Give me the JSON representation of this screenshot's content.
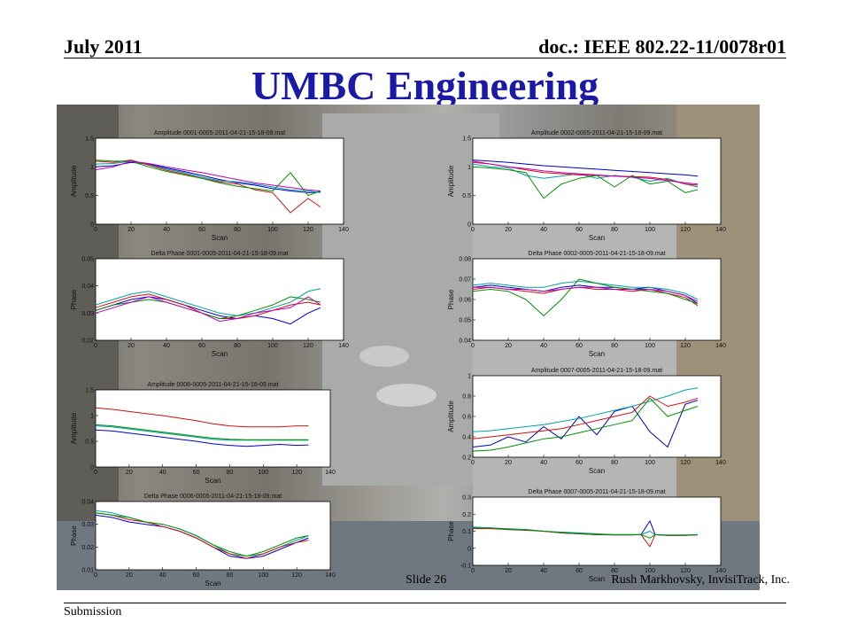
{
  "header": {
    "left": "July 2011",
    "right": "doc.: IEEE 802.22-11/0078r01"
  },
  "title": "UMBC Engineering",
  "footer": {
    "left": "Submission",
    "slide": "Slide 26",
    "author": "Rush Markhovsky, InvisiTrack, Inc."
  },
  "colors": {
    "title": "#1a1aa6",
    "series": [
      "#0000cc",
      "#00a0a0",
      "#d01010",
      "#009000",
      "#c000c0"
    ]
  },
  "chart_data": [
    {
      "type": "line",
      "title": "Amplitude 0001-0005-2011-04-21-15-18-09.mat",
      "xlabel": "Scan",
      "ylabel": "Amplitude",
      "xlim": [
        0,
        140
      ],
      "ylim": [
        0,
        1.5
      ],
      "xticks": [
        0,
        20,
        40,
        60,
        80,
        100,
        120,
        140
      ],
      "yticks": [
        0,
        0.5,
        1,
        1.5
      ],
      "x": [
        0,
        10,
        20,
        30,
        40,
        50,
        60,
        70,
        80,
        90,
        100,
        110,
        120,
        127
      ],
      "series": [
        {
          "values": [
            1.0,
            1.02,
            1.08,
            1.05,
            0.98,
            0.92,
            0.85,
            0.78,
            0.72,
            0.68,
            0.62,
            0.58,
            0.55,
            0.56
          ]
        },
        {
          "values": [
            1.05,
            1.06,
            1.1,
            1.04,
            0.96,
            0.9,
            0.82,
            0.76,
            0.74,
            0.7,
            0.65,
            0.6,
            0.58,
            0.55
          ]
        },
        {
          "values": [
            1.1,
            1.08,
            1.12,
            1.03,
            0.94,
            0.88,
            0.8,
            0.74,
            0.7,
            0.6,
            0.55,
            0.2,
            0.45,
            0.3
          ]
        },
        {
          "values": [
            1.12,
            1.1,
            1.1,
            1.0,
            0.92,
            0.86,
            0.8,
            0.72,
            0.66,
            0.62,
            0.58,
            0.9,
            0.5,
            0.58
          ]
        },
        {
          "values": [
            0.95,
            1.0,
            1.1,
            1.06,
            1.0,
            0.95,
            0.9,
            0.84,
            0.78,
            0.72,
            0.68,
            0.64,
            0.6,
            0.58
          ]
        }
      ]
    },
    {
      "type": "line",
      "title": "Amplitude 0002-0005-2011-04-21-15-18-09.mat",
      "xlabel": "Scan",
      "ylabel": "Amplitude",
      "xlim": [
        0,
        140
      ],
      "ylim": [
        0,
        1.5
      ],
      "xticks": [
        0,
        20,
        40,
        60,
        80,
        100,
        120,
        140
      ],
      "yticks": [
        0,
        0.5,
        1,
        1.5
      ],
      "x": [
        0,
        10,
        20,
        30,
        40,
        50,
        60,
        70,
        80,
        90,
        100,
        110,
        120,
        127
      ],
      "series": [
        {
          "values": [
            1.12,
            1.1,
            1.08,
            1.05,
            1.02,
            1.0,
            0.98,
            0.96,
            0.94,
            0.92,
            0.9,
            0.88,
            0.86,
            0.84
          ]
        },
        {
          "values": [
            1.05,
            1.0,
            0.98,
            0.85,
            0.8,
            0.84,
            0.88,
            0.8,
            0.85,
            0.82,
            0.75,
            0.8,
            0.7,
            0.65
          ]
        },
        {
          "values": [
            1.1,
            1.05,
            1.0,
            0.95,
            0.9,
            0.88,
            0.86,
            0.85,
            0.84,
            0.83,
            0.82,
            0.78,
            0.7,
            0.68
          ]
        },
        {
          "values": [
            1.0,
            0.98,
            0.95,
            0.9,
            0.45,
            0.7,
            0.8,
            0.85,
            0.65,
            0.85,
            0.7,
            0.75,
            0.55,
            0.6
          ]
        },
        {
          "values": [
            1.08,
            1.05,
            1.0,
            0.97,
            0.93,
            0.9,
            0.88,
            0.86,
            0.84,
            0.82,
            0.8,
            0.76,
            0.72,
            0.7
          ]
        }
      ]
    },
    {
      "type": "line",
      "title": "Delta Phase 0001-0005-2011-04-21-15-18-09.mat",
      "xlabel": "Scan",
      "ylabel": "Phase",
      "xlim": [
        0,
        140
      ],
      "ylim": [
        0.02,
        0.05
      ],
      "xticks": [
        0,
        20,
        40,
        60,
        80,
        100,
        120,
        140
      ],
      "yticks": [
        0.02,
        0.03,
        0.04,
        0.05
      ],
      "x": [
        0,
        10,
        20,
        30,
        40,
        50,
        60,
        70,
        80,
        90,
        100,
        110,
        120,
        127
      ],
      "series": [
        {
          "values": [
            0.031,
            0.033,
            0.035,
            0.036,
            0.035,
            0.033,
            0.031,
            0.029,
            0.028,
            0.029,
            0.028,
            0.026,
            0.03,
            0.032
          ]
        },
        {
          "values": [
            0.033,
            0.035,
            0.037,
            0.038,
            0.036,
            0.034,
            0.032,
            0.03,
            0.029,
            0.03,
            0.032,
            0.034,
            0.038,
            0.039
          ]
        },
        {
          "values": [
            0.032,
            0.034,
            0.036,
            0.037,
            0.035,
            0.033,
            0.03,
            0.028,
            0.028,
            0.029,
            0.031,
            0.033,
            0.034,
            0.033
          ]
        },
        {
          "values": [
            0.031,
            0.033,
            0.034,
            0.035,
            0.034,
            0.032,
            0.03,
            0.028,
            0.029,
            0.031,
            0.033,
            0.036,
            0.035,
            0.034
          ]
        },
        {
          "values": [
            0.03,
            0.032,
            0.034,
            0.036,
            0.034,
            0.032,
            0.03,
            0.027,
            0.028,
            0.03,
            0.031,
            0.032,
            0.036,
            0.033
          ]
        }
      ]
    },
    {
      "type": "line",
      "title": "Delta Phase 0002-0005-2011-04-21-15-18-09.mat",
      "xlabel": "Scan",
      "ylabel": "Phase",
      "xlim": [
        0,
        140
      ],
      "ylim": [
        0.04,
        0.08
      ],
      "xticks": [
        0,
        20,
        40,
        60,
        80,
        100,
        120,
        140
      ],
      "yticks": [
        0.04,
        0.05,
        0.06,
        0.07,
        0.08
      ],
      "x": [
        0,
        10,
        20,
        30,
        40,
        50,
        60,
        70,
        80,
        90,
        100,
        110,
        120,
        127
      ],
      "series": [
        {
          "values": [
            0.066,
            0.067,
            0.066,
            0.065,
            0.064,
            0.066,
            0.067,
            0.066,
            0.066,
            0.065,
            0.066,
            0.064,
            0.062,
            0.058
          ]
        },
        {
          "values": [
            0.067,
            0.068,
            0.067,
            0.066,
            0.066,
            0.068,
            0.069,
            0.068,
            0.067,
            0.066,
            0.066,
            0.065,
            0.063,
            0.06
          ]
        },
        {
          "values": [
            0.065,
            0.066,
            0.065,
            0.064,
            0.063,
            0.065,
            0.066,
            0.065,
            0.065,
            0.064,
            0.065,
            0.063,
            0.061,
            0.057
          ]
        },
        {
          "values": [
            0.064,
            0.065,
            0.064,
            0.06,
            0.052,
            0.06,
            0.07,
            0.068,
            0.066,
            0.065,
            0.064,
            0.063,
            0.06,
            0.058
          ]
        },
        {
          "values": [
            0.066,
            0.066,
            0.065,
            0.065,
            0.064,
            0.065,
            0.066,
            0.066,
            0.065,
            0.065,
            0.065,
            0.064,
            0.062,
            0.059
          ]
        }
      ]
    },
    {
      "type": "line",
      "title": "Amplitude 0006-0005-2011-04-21-15-18-09.mat",
      "xlabel": "Scan",
      "ylabel": "Amplitude",
      "xlim": [
        0,
        140
      ],
      "ylim": [
        0,
        1.5
      ],
      "xticks": [
        0,
        20,
        40,
        60,
        80,
        100,
        120,
        140
      ],
      "yticks": [
        0,
        0.5,
        1,
        1.5
      ],
      "x": [
        0,
        10,
        20,
        30,
        40,
        50,
        60,
        70,
        80,
        90,
        100,
        110,
        120,
        127
      ],
      "series": [
        {
          "values": [
            0.72,
            0.7,
            0.66,
            0.62,
            0.58,
            0.54,
            0.5,
            0.45,
            0.42,
            0.4,
            0.42,
            0.44,
            0.42,
            0.43
          ]
        },
        {
          "values": [
            0.8,
            0.78,
            0.74,
            0.7,
            0.66,
            0.62,
            0.58,
            0.54,
            0.52,
            0.52,
            0.52,
            0.52,
            0.52,
            0.52
          ]
        },
        {
          "values": [
            1.15,
            1.12,
            1.08,
            1.04,
            1.0,
            0.95,
            0.9,
            0.84,
            0.8,
            0.78,
            0.78,
            0.78,
            0.8,
            0.8
          ]
        },
        {
          "values": [
            0.82,
            0.8,
            0.76,
            0.72,
            0.68,
            0.64,
            0.6,
            0.56,
            0.54,
            0.53,
            0.53,
            0.53,
            0.53,
            0.53
          ]
        }
      ]
    },
    {
      "type": "line",
      "title": "Amplitude 0007-0005-2011-04-21-15-18-09.mat",
      "xlabel": "Scan",
      "ylabel": "Amplitude",
      "xlim": [
        0,
        140
      ],
      "ylim": [
        0.2,
        1
      ],
      "xticks": [
        0,
        20,
        40,
        60,
        80,
        100,
        120,
        140
      ],
      "yticks": [
        0.2,
        0.4,
        0.6,
        0.8,
        1
      ],
      "x": [
        0,
        10,
        20,
        30,
        40,
        50,
        60,
        70,
        80,
        90,
        100,
        110,
        120,
        127
      ],
      "series": [
        {
          "values": [
            0.3,
            0.32,
            0.4,
            0.35,
            0.5,
            0.38,
            0.6,
            0.42,
            0.65,
            0.7,
            0.45,
            0.3,
            0.72,
            0.76
          ]
        },
        {
          "values": [
            0.45,
            0.46,
            0.48,
            0.5,
            0.52,
            0.55,
            0.58,
            0.62,
            0.66,
            0.7,
            0.75,
            0.8,
            0.86,
            0.88
          ]
        },
        {
          "values": [
            0.38,
            0.4,
            0.42,
            0.44,
            0.46,
            0.48,
            0.52,
            0.56,
            0.6,
            0.64,
            0.8,
            0.7,
            0.74,
            0.78
          ]
        },
        {
          "values": [
            0.26,
            0.27,
            0.3,
            0.34,
            0.38,
            0.4,
            0.44,
            0.48,
            0.52,
            0.56,
            0.78,
            0.6,
            0.66,
            0.7
          ]
        }
      ]
    },
    {
      "type": "line",
      "title": "Delta Phase 0006-0005-2011-04-21-15-18-09.mat",
      "xlabel": "Scan",
      "ylabel": "Phase",
      "xlim": [
        0,
        140
      ],
      "ylim": [
        0.01,
        0.04
      ],
      "xticks": [
        0,
        20,
        40,
        60,
        80,
        100,
        120,
        140
      ],
      "yticks": [
        0.01,
        0.02,
        0.03,
        0.04
      ],
      "x": [
        0,
        10,
        20,
        30,
        40,
        50,
        60,
        70,
        80,
        90,
        100,
        110,
        120,
        127
      ],
      "series": [
        {
          "values": [
            0.034,
            0.033,
            0.031,
            0.03,
            0.029,
            0.027,
            0.024,
            0.02,
            0.016,
            0.015,
            0.016,
            0.019,
            0.022,
            0.024
          ]
        },
        {
          "values": [
            0.036,
            0.035,
            0.033,
            0.031,
            0.03,
            0.028,
            0.025,
            0.021,
            0.017,
            0.016,
            0.017,
            0.02,
            0.023,
            0.025
          ]
        },
        {
          "values": [
            0.035,
            0.034,
            0.032,
            0.031,
            0.029,
            0.027,
            0.024,
            0.02,
            0.017,
            0.015,
            0.017,
            0.02,
            0.022,
            0.023
          ]
        },
        {
          "values": [
            0.035,
            0.034,
            0.033,
            0.031,
            0.03,
            0.028,
            0.025,
            0.021,
            0.018,
            0.016,
            0.018,
            0.021,
            0.024,
            0.025
          ]
        }
      ]
    },
    {
      "type": "line",
      "title": "Delta Phase 0007-0005-2011-04-21-15-18-09.mat",
      "xlabel": "Scan",
      "ylabel": "Phase",
      "xlim": [
        0,
        140
      ],
      "ylim": [
        -0.1,
        0.3
      ],
      "xticks": [
        0,
        20,
        40,
        60,
        80,
        100,
        120,
        140
      ],
      "yticks": [
        -0.1,
        0,
        0.1,
        0.2,
        0.3
      ],
      "x": [
        0,
        10,
        20,
        30,
        40,
        50,
        60,
        70,
        80,
        90,
        95,
        100,
        103,
        110,
        120,
        127
      ],
      "series": [
        {
          "values": [
            0.12,
            0.12,
            0.11,
            0.11,
            0.1,
            0.09,
            0.085,
            0.08,
            0.08,
            0.08,
            0.08,
            0.16,
            0.08,
            0.075,
            0.075,
            0.08
          ]
        },
        {
          "values": [
            0.125,
            0.12,
            0.115,
            0.11,
            0.1,
            0.095,
            0.09,
            0.085,
            0.08,
            0.08,
            0.08,
            0.1,
            0.08,
            0.078,
            0.078,
            0.08
          ]
        },
        {
          "values": [
            0.115,
            0.115,
            0.11,
            0.105,
            0.1,
            0.09,
            0.085,
            0.08,
            0.078,
            0.078,
            0.08,
            0.01,
            0.08,
            0.075,
            0.076,
            0.078
          ]
        },
        {
          "values": [
            0.12,
            0.118,
            0.112,
            0.108,
            0.1,
            0.092,
            0.086,
            0.082,
            0.079,
            0.079,
            0.08,
            0.06,
            0.08,
            0.076,
            0.077,
            0.079
          ]
        }
      ]
    }
  ]
}
